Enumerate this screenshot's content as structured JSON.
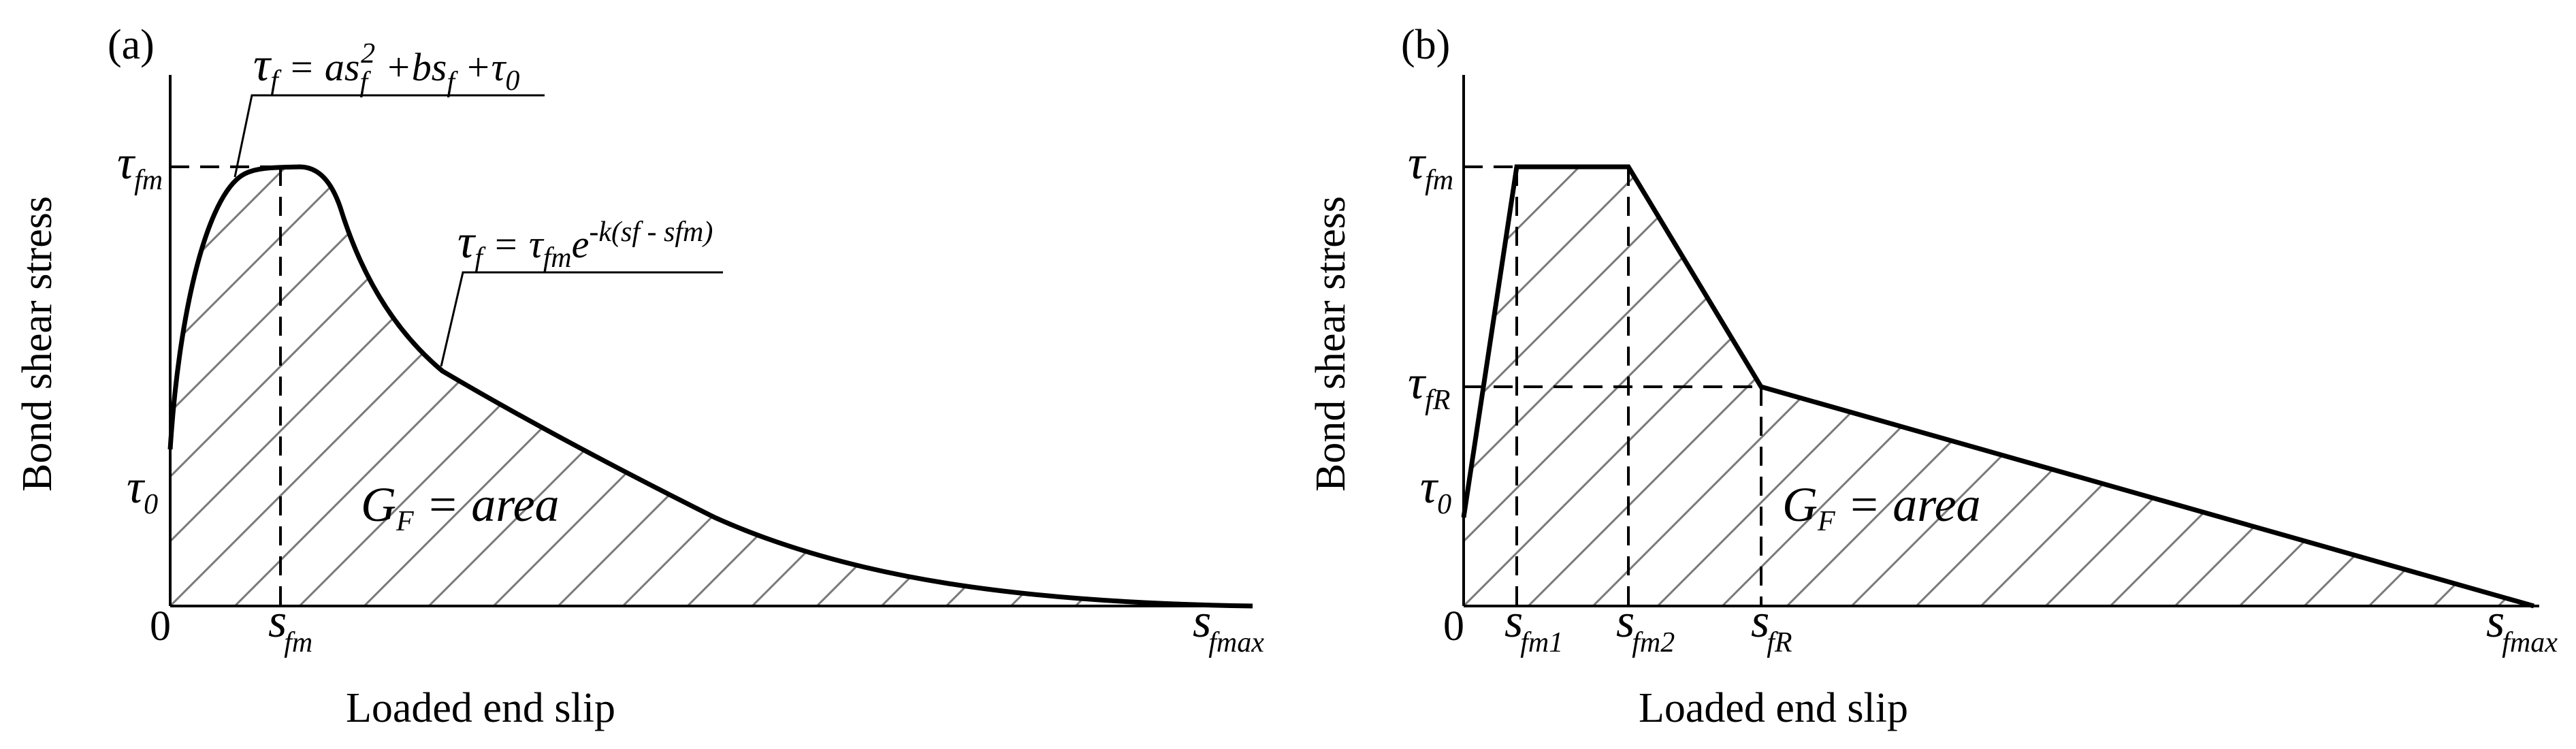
{
  "panel_a": {
    "label": "(a)",
    "y_axis_title": "Bond shear stress",
    "x_axis_title": "Loaded end slip",
    "origin": "0",
    "y_labels": {
      "tau_fm": {
        "sym": "τ",
        "sub": "fm"
      },
      "tau_0": {
        "sym": "τ",
        "sub": "0"
      }
    },
    "x_labels": {
      "s_fm": {
        "sym": "s",
        "sub": "fm"
      },
      "s_fmax": {
        "sym": "s",
        "sub": "fmax"
      }
    },
    "equation_1": {
      "tau": "τ",
      "f1": "f",
      "eq": " = as",
      "f2": "f",
      "sq": "2",
      "plus_b": " +bs",
      "f3": "f",
      "plus_tau": " +τ",
      "zero": "0"
    },
    "equation_2": {
      "tau": "τ",
      "f": "f",
      "eq": " = τ",
      "fm": "fm",
      "e": "e",
      "exp": "-k(sf - sfm)"
    },
    "area_label": {
      "G": "G",
      "F": "F",
      "rest": " = area"
    }
  },
  "panel_b": {
    "label": "(b)",
    "y_axis_title": "Bond shear stress",
    "x_axis_title": "Loaded end slip",
    "origin": "0",
    "y_labels": {
      "tau_fm": {
        "sym": "τ",
        "sub": "fm"
      },
      "tau_fR": {
        "sym": "τ",
        "sub": "fR"
      },
      "tau_0": {
        "sym": "τ",
        "sub": "0"
      }
    },
    "x_labels": {
      "s_fm1": {
        "sym": "s",
        "sub": "fm1"
      },
      "s_fm2": {
        "sym": "s",
        "sub": "fm2"
      },
      "s_fR": {
        "sym": "s",
        "sub": "fR"
      },
      "s_fmax": {
        "sym": "s",
        "sub": "fmax"
      }
    },
    "area_label": {
      "G": "G",
      "F": "F",
      "rest": " = area"
    }
  }
}
